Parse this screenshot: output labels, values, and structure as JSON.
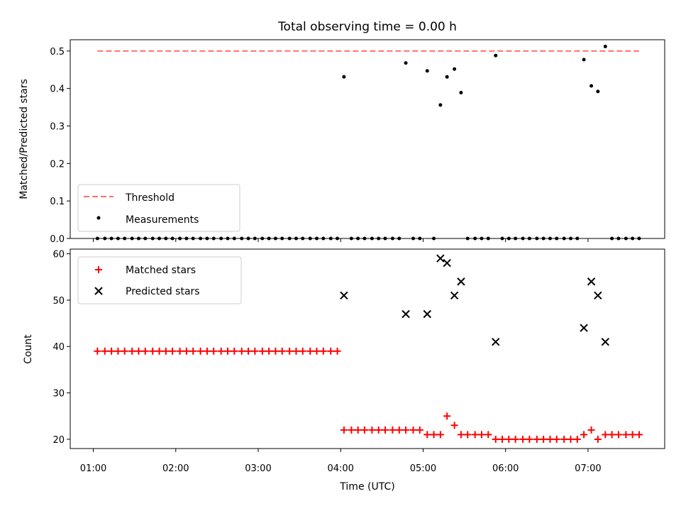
{
  "chart_data": [
    {
      "type": "scatter",
      "title": "Total observing time = 0.00 h",
      "ylabel": "Matched/Predicted stars",
      "xlabel": "",
      "xlim_hours": [
        0.72,
        7.93
      ],
      "ylim": [
        0,
        0.53
      ],
      "yticks": [
        0.0,
        0.1,
        0.2,
        0.3,
        0.4,
        0.5
      ],
      "yticklabels": [
        "0.0",
        "0.1",
        "0.2",
        "0.3",
        "0.4",
        "0.5"
      ],
      "threshold": {
        "name": "Threshold",
        "value": 0.5,
        "x_range_hours": [
          1.05,
          7.62
        ],
        "color": "#ff7070",
        "style": "dashed"
      },
      "series": [
        {
          "name": "Measurements",
          "color": "#000000",
          "marker": "dot",
          "x_hours": [
            1.05,
            1.14,
            1.22,
            1.3,
            1.38,
            1.47,
            1.55,
            1.63,
            1.72,
            1.8,
            1.88,
            1.96,
            2.05,
            2.13,
            2.21,
            2.3,
            2.38,
            2.46,
            2.55,
            2.63,
            2.71,
            2.8,
            2.88,
            2.96,
            3.05,
            3.13,
            3.21,
            3.29,
            3.38,
            3.46,
            3.54,
            3.63,
            3.71,
            3.79,
            3.88,
            3.96,
            4.04,
            4.13,
            4.21,
            4.29,
            4.38,
            4.46,
            4.54,
            4.63,
            4.71,
            4.79,
            4.88,
            4.96,
            5.05,
            5.13,
            5.21,
            5.29,
            5.38,
            5.46,
            5.54,
            5.63,
            5.71,
            5.79,
            5.88,
            5.96,
            6.04,
            6.12,
            6.21,
            6.29,
            6.38,
            6.46,
            6.54,
            6.62,
            6.71,
            6.79,
            6.87,
            6.95,
            7.04,
            7.12,
            7.21,
            7.29,
            7.37,
            7.46,
            7.54,
            7.62
          ],
          "y": [
            0,
            0,
            0,
            0,
            0,
            0,
            0,
            0,
            0,
            0,
            0,
            0,
            0,
            0,
            0,
            0,
            0,
            0,
            0,
            0,
            0,
            0,
            0,
            0,
            0,
            0,
            0,
            0,
            0,
            0,
            0,
            0,
            0,
            0,
            0,
            0,
            0.431,
            0,
            0,
            0,
            0,
            0,
            0,
            0,
            0,
            0.468,
            0,
            0,
            0.447,
            0,
            0.356,
            0.431,
            0.452,
            0.389,
            0,
            0,
            0,
            0,
            0.488,
            0,
            0,
            0,
            0,
            0,
            0,
            0,
            0,
            0,
            0,
            0,
            0,
            0.477,
            0.407,
            0.392,
            0.512,
            0,
            0,
            0,
            0,
            0
          ]
        }
      ],
      "legend_position": "lower-left"
    },
    {
      "type": "scatter",
      "title": "",
      "xlabel": "Time (UTC)",
      "ylabel": "Count",
      "xlim_hours": [
        0.72,
        7.93
      ],
      "ylim": [
        18,
        61
      ],
      "yticks": [
        20,
        30,
        40,
        50,
        60
      ],
      "yticklabels": [
        "20",
        "30",
        "40",
        "50",
        "60"
      ],
      "xticks_hours": [
        1,
        2,
        3,
        4,
        5,
        6,
        7
      ],
      "xticklabels": [
        "01:00",
        "02:00",
        "03:00",
        "04:00",
        "05:00",
        "06:00",
        "07:00"
      ],
      "series": [
        {
          "name": "Matched stars",
          "color": "#ff0000",
          "marker": "plus",
          "x_hours": [
            1.05,
            1.14,
            1.22,
            1.3,
            1.38,
            1.47,
            1.55,
            1.63,
            1.72,
            1.8,
            1.88,
            1.96,
            2.05,
            2.13,
            2.21,
            2.3,
            2.38,
            2.46,
            2.55,
            2.63,
            2.71,
            2.8,
            2.88,
            2.96,
            3.05,
            3.13,
            3.21,
            3.29,
            3.38,
            3.46,
            3.54,
            3.63,
            3.71,
            3.79,
            3.88,
            3.96,
            4.04,
            4.13,
            4.21,
            4.29,
            4.38,
            4.46,
            4.54,
            4.63,
            4.71,
            4.79,
            4.88,
            4.96,
            5.05,
            5.13,
            5.21,
            5.29,
            5.38,
            5.46,
            5.54,
            5.63,
            5.71,
            5.79,
            5.88,
            5.96,
            6.04,
            6.12,
            6.21,
            6.29,
            6.38,
            6.46,
            6.54,
            6.62,
            6.71,
            6.79,
            6.87,
            6.95,
            7.04,
            7.12,
            7.21,
            7.29,
            7.37,
            7.46,
            7.54,
            7.62
          ],
          "y": [
            39,
            39,
            39,
            39,
            39,
            39,
            39,
            39,
            39,
            39,
            39,
            39,
            39,
            39,
            39,
            39,
            39,
            39,
            39,
            39,
            39,
            39,
            39,
            39,
            39,
            39,
            39,
            39,
            39,
            39,
            39,
            39,
            39,
            39,
            39,
            39,
            22,
            22,
            22,
            22,
            22,
            22,
            22,
            22,
            22,
            22,
            22,
            22,
            21,
            21,
            21,
            25,
            23,
            21,
            21,
            21,
            21,
            21,
            20,
            20,
            20,
            20,
            20,
            20,
            20,
            20,
            20,
            20,
            20,
            20,
            20,
            21,
            22,
            20,
            21,
            21,
            21,
            21,
            21,
            21
          ]
        },
        {
          "name": "Predicted stars",
          "color": "#000000",
          "marker": "x",
          "x_hours": [
            4.04,
            4.79,
            5.05,
            5.21,
            5.29,
            5.38,
            5.46,
            5.88,
            6.95,
            7.04,
            7.12,
            7.21
          ],
          "y": [
            51,
            47,
            47,
            59,
            58,
            51,
            54,
            41,
            44,
            54,
            51,
            41
          ]
        }
      ],
      "legend_position": "upper-left"
    }
  ]
}
